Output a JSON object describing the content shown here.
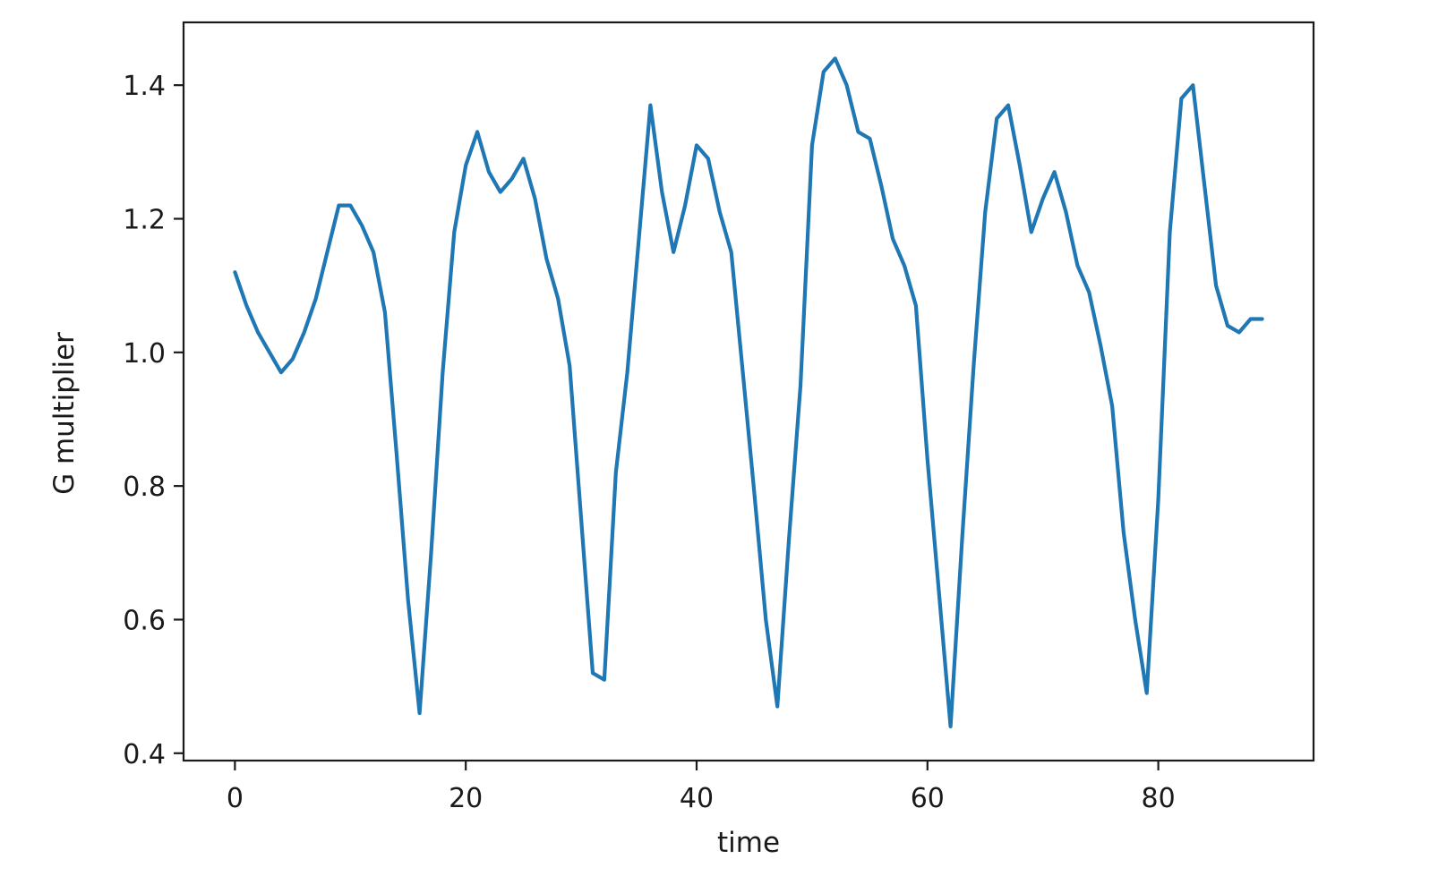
{
  "chart_data": {
    "type": "line",
    "title": "",
    "xlabel": "time",
    "ylabel": "G multiplier",
    "x": [
      0,
      1,
      2,
      3,
      4,
      5,
      6,
      7,
      8,
      9,
      10,
      11,
      12,
      13,
      14,
      15,
      16,
      17,
      18,
      19,
      20,
      21,
      22,
      23,
      24,
      25,
      26,
      27,
      28,
      29,
      30,
      31,
      32,
      33,
      34,
      35,
      36,
      37,
      38,
      39,
      40,
      41,
      42,
      43,
      44,
      45,
      46,
      47,
      48,
      49,
      50,
      51,
      52,
      53,
      54,
      55,
      56,
      57,
      58,
      59,
      60,
      61,
      62,
      63,
      64,
      65,
      66,
      67,
      68,
      69,
      70,
      71,
      72,
      73,
      74,
      75,
      76,
      77,
      78,
      79,
      80,
      81,
      82,
      83,
      84,
      85,
      86,
      87,
      88,
      89
    ],
    "values": [
      1.12,
      1.07,
      1.03,
      1.0,
      0.97,
      0.99,
      1.03,
      1.08,
      1.15,
      1.22,
      1.22,
      1.19,
      1.15,
      1.06,
      0.85,
      0.63,
      0.46,
      0.7,
      0.97,
      1.18,
      1.28,
      1.33,
      1.27,
      1.24,
      1.26,
      1.29,
      1.23,
      1.14,
      1.08,
      0.98,
      0.75,
      0.52,
      0.51,
      0.82,
      0.97,
      1.17,
      1.37,
      1.24,
      1.15,
      1.22,
      1.31,
      1.29,
      1.21,
      1.15,
      0.97,
      0.79,
      0.6,
      0.47,
      0.72,
      0.95,
      1.31,
      1.42,
      1.44,
      1.4,
      1.33,
      1.32,
      1.25,
      1.17,
      1.13,
      1.07,
      0.84,
      0.64,
      0.44,
      0.72,
      0.98,
      1.21,
      1.35,
      1.37,
      1.28,
      1.18,
      1.23,
      1.27,
      1.21,
      1.13,
      1.09,
      1.01,
      0.92,
      0.73,
      0.6,
      0.49,
      0.78,
      1.18,
      1.38,
      1.4,
      1.25,
      1.1,
      1.04,
      1.03,
      1.05,
      1.05
    ],
    "xticks": [
      0,
      20,
      40,
      60,
      80
    ],
    "ytick_labels": [
      "0.4",
      "0.6",
      "0.8",
      "1.0",
      "1.2",
      "1.4"
    ],
    "yticks": [
      0.4,
      0.6,
      0.8,
      1.0,
      1.2,
      1.4
    ],
    "xlim": [
      -4.45,
      93.45
    ],
    "ylim": [
      0.389,
      1.494
    ],
    "grid": false,
    "legend": null,
    "line_color": "#1f77b4",
    "axis_color": "#1a1a1a",
    "background_color": "#ffffff"
  }
}
